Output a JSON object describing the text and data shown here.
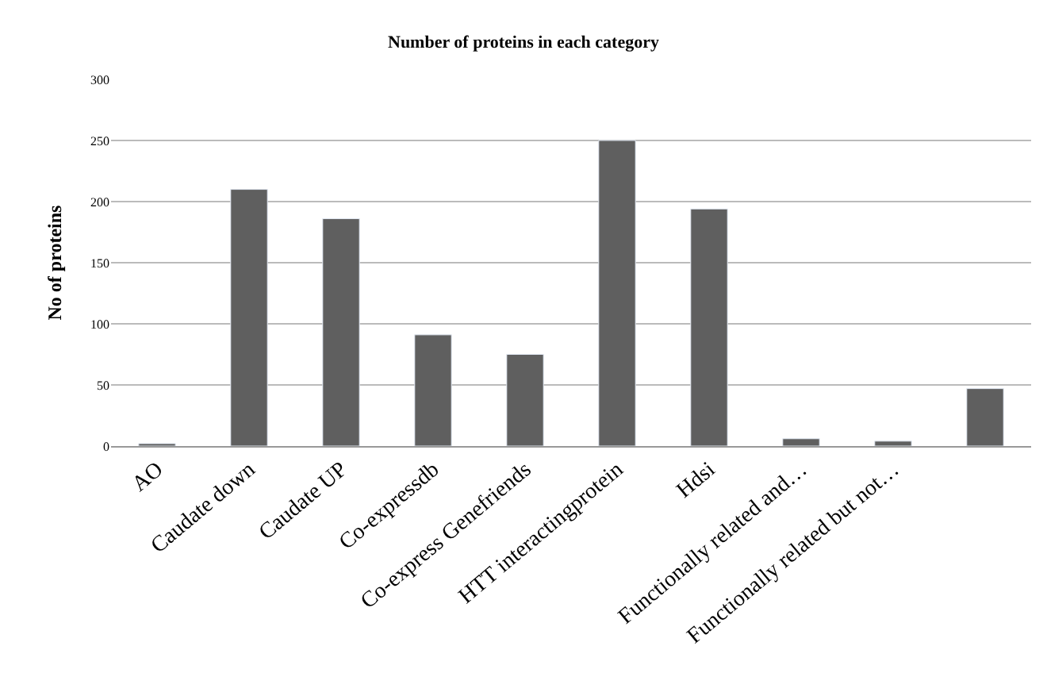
{
  "chart_data": {
    "type": "bar",
    "title": "Number of proteins in each category",
    "ylabel": "No of proteins",
    "categories": [
      "AO",
      "Caudate down",
      "Caudate UP",
      "Co-expressdb",
      "Co-express Genefriends",
      "HTT interactingprotein",
      "Hdsi",
      "Functionally related and…",
      "Functionally related but not…",
      null
    ],
    "values": [
      2,
      210,
      186,
      91,
      75,
      250,
      194,
      6,
      4,
      47
    ],
    "color": "#5f5f5f",
    "ylim": [
      0,
      300
    ],
    "yticks": [
      0,
      50,
      100,
      150,
      200,
      250,
      300
    ],
    "grid": "y"
  }
}
